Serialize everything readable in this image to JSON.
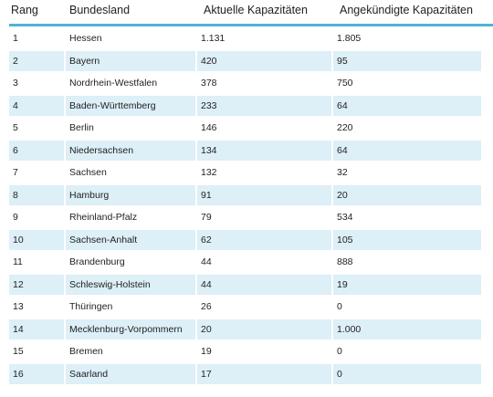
{
  "table": {
    "headers": [
      "Rang",
      "Bundesland",
      "Aktuelle Kapazitäten",
      "Angekündigte Kapazitäten"
    ],
    "rows": [
      [
        "1",
        "Hessen",
        "1.131",
        "1.805"
      ],
      [
        "2",
        "Bayern",
        "420",
        "95"
      ],
      [
        "3",
        "Nordrhein-Westfalen",
        "378",
        "750"
      ],
      [
        "4",
        "Baden-Württemberg",
        "233",
        "64"
      ],
      [
        "5",
        "Berlin",
        "146",
        "220"
      ],
      [
        "6",
        "Niedersachsen",
        "134",
        "64"
      ],
      [
        "7",
        "Sachsen",
        "132",
        "32"
      ],
      [
        "8",
        "Hamburg",
        "91",
        "20"
      ],
      [
        "9",
        "Rheinland-Pfalz",
        "79",
        "534"
      ],
      [
        "10",
        "Sachsen-Anhalt",
        "62",
        "105"
      ],
      [
        "11",
        "Brandenburg",
        "44",
        "888"
      ],
      [
        "12",
        "Schleswig-Holstein",
        "44",
        "19"
      ],
      [
        "13",
        "Thüringen",
        "26",
        "0"
      ],
      [
        "14",
        "Mecklenburg-Vorpommern",
        "20",
        "1.000"
      ],
      [
        "15",
        "Bremen",
        "19",
        "0"
      ],
      [
        "16",
        "Saarland",
        "17",
        "0"
      ]
    ]
  },
  "colors": {
    "header_rule": "#4fb3d6",
    "row_shade": "#ddeff7"
  }
}
